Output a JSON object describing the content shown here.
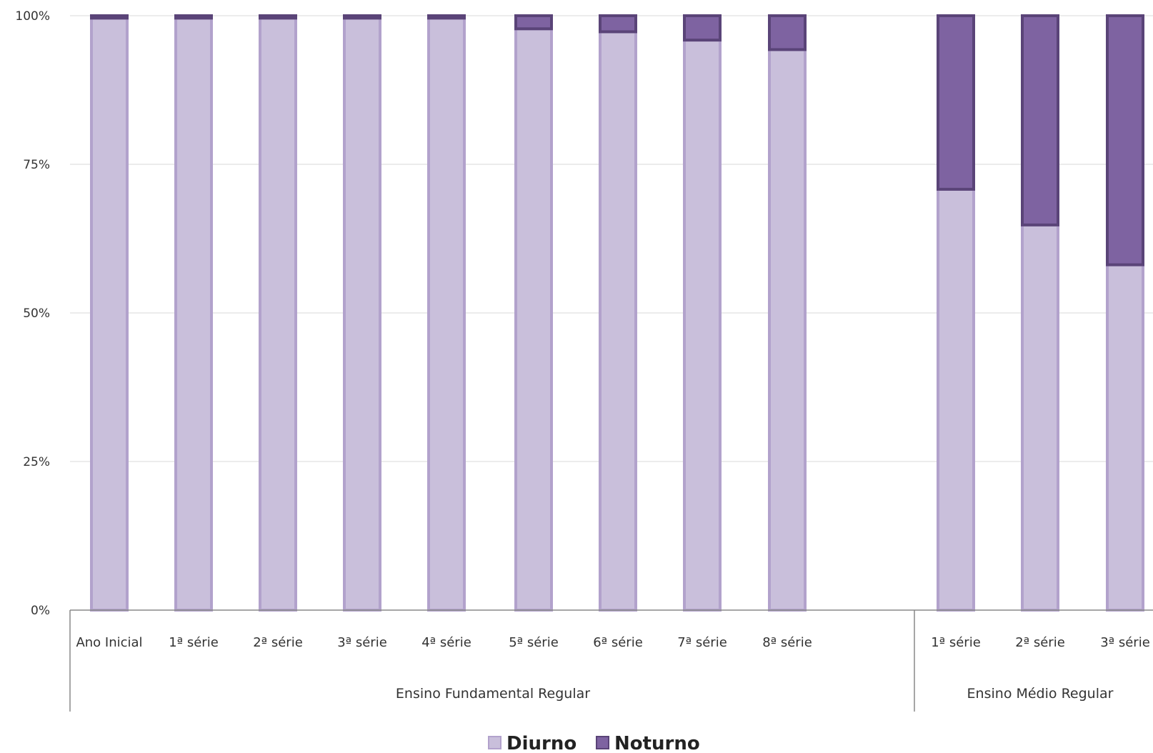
{
  "chart_data": {
    "type": "bar",
    "stacked": true,
    "percent": true,
    "groups": [
      {
        "label": "Ensino Fundamental Regular",
        "categories": [
          "Ano Inicial",
          "1ª série",
          "2ª série",
          "3ª série",
          "4ª série",
          "5ª série",
          "6ª série",
          "7ª série",
          "8ª série"
        ]
      },
      {
        "label": "Ensino Médio Regular",
        "categories": [
          "1ª série",
          "2ª série",
          "3ª série"
        ]
      }
    ],
    "categories": [
      "Ano Inicial",
      "1ª série",
      "2ª série",
      "3ª série",
      "4ª série",
      "5ª série",
      "6ª série",
      "7ª série",
      "8ª série",
      "1ª série",
      "2ª série",
      "3ª série"
    ],
    "series": [
      {
        "name": "Diurno",
        "color": "#c9bfdb",
        "stroke": "#b2a2cc",
        "values": [
          99.6,
          99.6,
          99.6,
          99.6,
          99.6,
          97.8,
          97.3,
          95.9,
          94.3,
          70.8,
          64.8,
          58.1
        ]
      },
      {
        "name": "Noturno",
        "color": "#7e63a1",
        "stroke": "#5a4478",
        "values": [
          0.4,
          0.4,
          0.4,
          0.4,
          0.4,
          2.2,
          2.7,
          4.1,
          5.7,
          29.2,
          35.2,
          41.9
        ]
      }
    ],
    "y_ticks": [
      "0%",
      "25%",
      "50%",
      "75%",
      "100%"
    ],
    "ylim": [
      0,
      100
    ],
    "grid": true,
    "legend": "bottom"
  }
}
